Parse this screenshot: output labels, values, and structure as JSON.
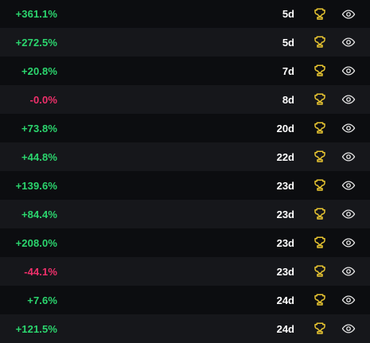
{
  "colors": {
    "positive": "#2bd66e",
    "negative": "#f0306b",
    "trophy": "#e8c531",
    "eye": "#e6e6e6",
    "row_dark": "#0c0d10",
    "row_light": "#16171b"
  },
  "icons": {
    "trophy": "trophy-icon",
    "eye": "eye-icon"
  },
  "rows": [
    {
      "pnl": "+361.1%",
      "days": "5d",
      "sign": "pos"
    },
    {
      "pnl": "+272.5%",
      "days": "5d",
      "sign": "pos"
    },
    {
      "pnl": "+20.8%",
      "days": "7d",
      "sign": "pos"
    },
    {
      "pnl": "-0.0%",
      "days": "8d",
      "sign": "neg"
    },
    {
      "pnl": "+73.8%",
      "days": "20d",
      "sign": "pos"
    },
    {
      "pnl": "+44.8%",
      "days": "22d",
      "sign": "pos"
    },
    {
      "pnl": "+139.6%",
      "days": "23d",
      "sign": "pos"
    },
    {
      "pnl": "+84.4%",
      "days": "23d",
      "sign": "pos"
    },
    {
      "pnl": "+208.0%",
      "days": "23d",
      "sign": "pos"
    },
    {
      "pnl": "-44.1%",
      "days": "23d",
      "sign": "neg"
    },
    {
      "pnl": "+7.6%",
      "days": "24d",
      "sign": "pos"
    },
    {
      "pnl": "+121.5%",
      "days": "24d",
      "sign": "pos"
    }
  ]
}
